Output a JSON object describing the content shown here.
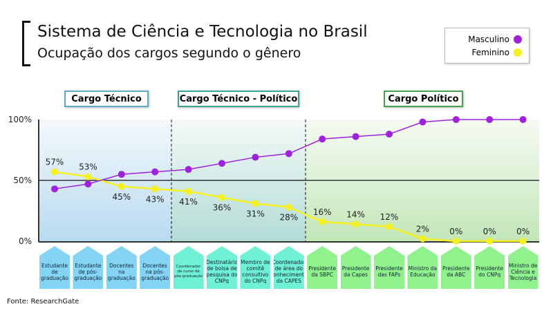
{
  "title": "Sistema de Ciência e Tecnologia no Brasil",
  "subtitle": "Ocupação dos cargos segundo o gênero",
  "source": "Fonte: ResearchGate",
  "groups": [
    {
      "label": "Cargo Técnico",
      "color": "#5aaac8"
    },
    {
      "label": "Cargo Técnico - Político",
      "color": "#3aa394"
    },
    {
      "label": "Cargo Político",
      "color": "#4aa34a"
    }
  ],
  "chart_data": {
    "type": "line",
    "title": "Ocupação dos cargos segundo o gênero",
    "ylim": [
      0,
      100
    ],
    "yticks": [
      "0%",
      "50%",
      "100%"
    ],
    "legend_position": "top-right",
    "categories": [
      "Estudante de graduação",
      "Estudante de pós-graduação",
      "Docentes na graduação",
      "Docentes na pós-graduação",
      "Coordenador de curso de pós-graduação",
      "Destinatário de bolsa de pesquisa do CNPq",
      "Membro de comitê consultivo do CNPq",
      "Coordenador de área do conhecimento da CAPES",
      "Presidente da SBPC",
      "Presidente da Capes",
      "Presidente das FAPs",
      "Ministro da Educação",
      "Presidente da ABC",
      "Presidente do CNPq",
      "Ministro de Ciência e Tecnologia"
    ],
    "category_groups": [
      0,
      0,
      0,
      0,
      1,
      1,
      1,
      1,
      2,
      2,
      2,
      2,
      2,
      2,
      2
    ],
    "series": [
      {
        "name": "Masculino",
        "color": "#a020e0",
        "values": [
          43,
          47,
          55,
          57,
          59,
          64,
          69,
          72,
          84,
          86,
          88,
          98,
          100,
          100,
          100
        ]
      },
      {
        "name": "Feminino",
        "color": "#f5f020",
        "values": [
          57,
          53,
          45,
          43,
          41,
          36,
          31,
          28,
          16,
          14,
          12,
          2,
          0,
          0,
          0
        ],
        "labels": [
          "57%",
          "53%",
          "45%",
          "43%",
          "41%",
          "36%",
          "31%",
          "28%",
          "16%",
          "14%",
          "12%",
          "2%",
          "0%",
          "0%",
          "0%"
        ]
      }
    ]
  }
}
